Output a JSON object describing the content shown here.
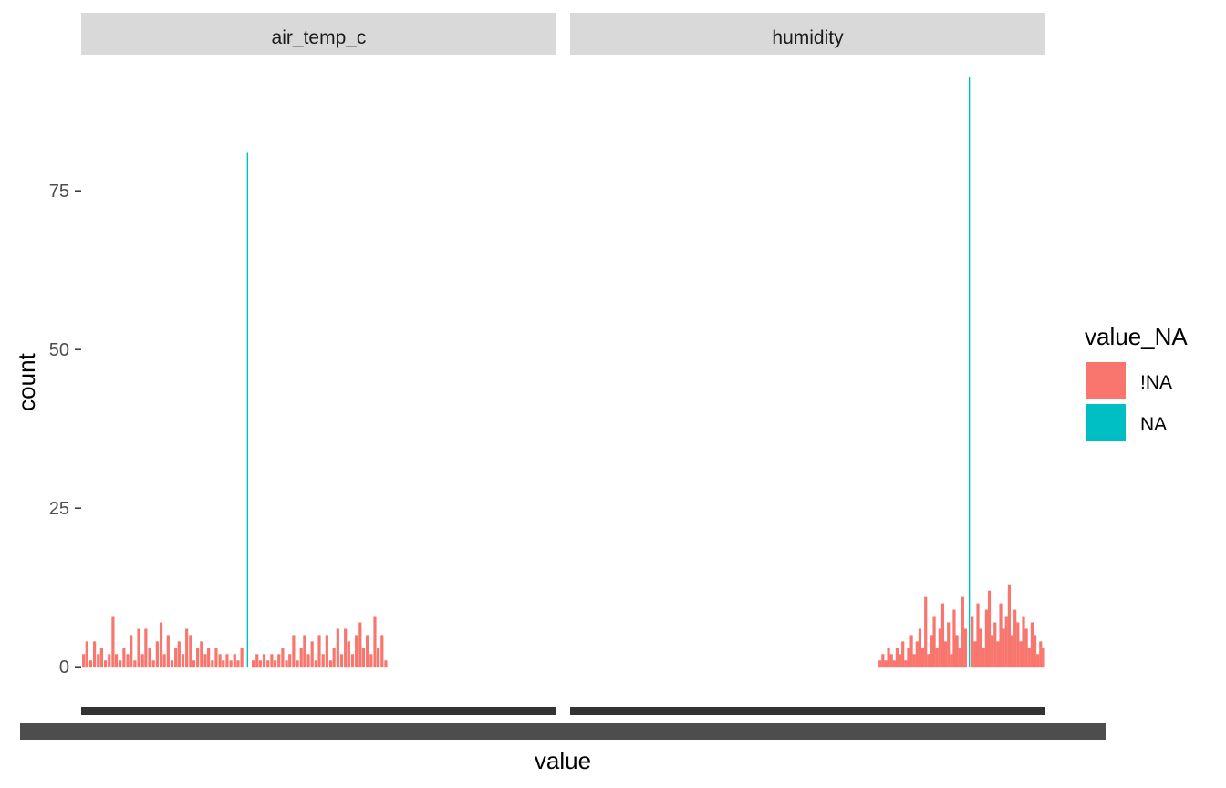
{
  "chart_data": {
    "type": "bar",
    "subtype": "faceted histogram",
    "title": "",
    "xlabel": "value",
    "ylabel": "count",
    "ylim": [
      -5,
      95
    ],
    "y_ticks": [
      0,
      25,
      50,
      75
    ],
    "grid": false,
    "legend": {
      "title": "value_NA",
      "placement": "right",
      "entries": [
        {
          "label": "!NA",
          "color": "#F8766D"
        },
        {
          "label": "NA",
          "color": "#00BFC4"
        }
      ]
    },
    "facets": [
      {
        "label": "air_temp_c",
        "x_range": [
          0,
          100
        ],
        "na": {
          "x": 35,
          "count": 81
        },
        "non_na": [
          {
            "x": 0.5,
            "count": 2
          },
          {
            "x": 1.2,
            "count": 4
          },
          {
            "x": 2.0,
            "count": 1
          },
          {
            "x": 2.8,
            "count": 4
          },
          {
            "x": 3.6,
            "count": 2
          },
          {
            "x": 4.3,
            "count": 3
          },
          {
            "x": 5.1,
            "count": 1
          },
          {
            "x": 5.9,
            "count": 2
          },
          {
            "x": 6.7,
            "count": 8
          },
          {
            "x": 7.4,
            "count": 2
          },
          {
            "x": 8.2,
            "count": 1
          },
          {
            "x": 9.0,
            "count": 3
          },
          {
            "x": 9.8,
            "count": 2
          },
          {
            "x": 10.5,
            "count": 5
          },
          {
            "x": 11.3,
            "count": 1
          },
          {
            "x": 12.1,
            "count": 6
          },
          {
            "x": 12.9,
            "count": 2
          },
          {
            "x": 13.6,
            "count": 6
          },
          {
            "x": 14.4,
            "count": 3
          },
          {
            "x": 15.2,
            "count": 1
          },
          {
            "x": 16.0,
            "count": 4
          },
          {
            "x": 16.8,
            "count": 7
          },
          {
            "x": 17.5,
            "count": 2
          },
          {
            "x": 18.3,
            "count": 5
          },
          {
            "x": 19.1,
            "count": 1
          },
          {
            "x": 19.9,
            "count": 3
          },
          {
            "x": 20.6,
            "count": 4
          },
          {
            "x": 21.4,
            "count": 2
          },
          {
            "x": 22.2,
            "count": 6
          },
          {
            "x": 23.0,
            "count": 5
          },
          {
            "x": 23.7,
            "count": 1
          },
          {
            "x": 24.5,
            "count": 3
          },
          {
            "x": 25.3,
            "count": 4
          },
          {
            "x": 26.1,
            "count": 2
          },
          {
            "x": 26.8,
            "count": 3
          },
          {
            "x": 27.6,
            "count": 1
          },
          {
            "x": 28.4,
            "count": 3
          },
          {
            "x": 29.2,
            "count": 2
          },
          {
            "x": 29.9,
            "count": 1
          },
          {
            "x": 30.7,
            "count": 2
          },
          {
            "x": 31.5,
            "count": 1
          },
          {
            "x": 32.3,
            "count": 2
          },
          {
            "x": 33.0,
            "count": 1
          },
          {
            "x": 33.8,
            "count": 3
          },
          {
            "x": 36.2,
            "count": 1
          },
          {
            "x": 37.0,
            "count": 2
          },
          {
            "x": 37.7,
            "count": 1
          },
          {
            "x": 38.5,
            "count": 2
          },
          {
            "x": 39.3,
            "count": 1
          },
          {
            "x": 40.1,
            "count": 2
          },
          {
            "x": 40.8,
            "count": 1
          },
          {
            "x": 41.6,
            "count": 2
          },
          {
            "x": 42.4,
            "count": 3
          },
          {
            "x": 43.2,
            "count": 1
          },
          {
            "x": 43.9,
            "count": 2
          },
          {
            "x": 44.7,
            "count": 5
          },
          {
            "x": 45.5,
            "count": 1
          },
          {
            "x": 46.3,
            "count": 3
          },
          {
            "x": 47.0,
            "count": 5
          },
          {
            "x": 47.8,
            "count": 2
          },
          {
            "x": 48.6,
            "count": 4
          },
          {
            "x": 49.4,
            "count": 1
          },
          {
            "x": 50.1,
            "count": 5
          },
          {
            "x": 50.9,
            "count": 2
          },
          {
            "x": 51.7,
            "count": 5
          },
          {
            "x": 52.5,
            "count": 1
          },
          {
            "x": 53.2,
            "count": 3
          },
          {
            "x": 54.0,
            "count": 6
          },
          {
            "x": 54.8,
            "count": 2
          },
          {
            "x": 55.6,
            "count": 6
          },
          {
            "x": 56.3,
            "count": 4
          },
          {
            "x": 57.1,
            "count": 2
          },
          {
            "x": 57.9,
            "count": 5
          },
          {
            "x": 58.7,
            "count": 7
          },
          {
            "x": 59.4,
            "count": 3
          },
          {
            "x": 60.2,
            "count": 5
          },
          {
            "x": 61.0,
            "count": 2
          },
          {
            "x": 61.8,
            "count": 8
          },
          {
            "x": 62.5,
            "count": 3
          },
          {
            "x": 63.3,
            "count": 5
          },
          {
            "x": 64.1,
            "count": 1
          }
        ]
      },
      {
        "label": "humidity",
        "x_range": [
          0,
          100
        ],
        "na": {
          "x": 84,
          "count": 93
        },
        "non_na": [
          {
            "x": 65.2,
            "count": 1
          },
          {
            "x": 65.8,
            "count": 2
          },
          {
            "x": 66.4,
            "count": 1
          },
          {
            "x": 67.0,
            "count": 3
          },
          {
            "x": 67.6,
            "count": 2
          },
          {
            "x": 68.2,
            "count": 1
          },
          {
            "x": 68.8,
            "count": 3
          },
          {
            "x": 69.4,
            "count": 2
          },
          {
            "x": 70.0,
            "count": 4
          },
          {
            "x": 70.6,
            "count": 1
          },
          {
            "x": 71.2,
            "count": 3
          },
          {
            "x": 71.8,
            "count": 5
          },
          {
            "x": 72.4,
            "count": 2
          },
          {
            "x": 73.0,
            "count": 4
          },
          {
            "x": 73.6,
            "count": 6
          },
          {
            "x": 74.2,
            "count": 3
          },
          {
            "x": 74.8,
            "count": 11
          },
          {
            "x": 75.4,
            "count": 2
          },
          {
            "x": 76.0,
            "count": 5
          },
          {
            "x": 76.6,
            "count": 8
          },
          {
            "x": 77.2,
            "count": 3
          },
          {
            "x": 77.8,
            "count": 6
          },
          {
            "x": 78.4,
            "count": 10
          },
          {
            "x": 79.0,
            "count": 4
          },
          {
            "x": 79.6,
            "count": 7
          },
          {
            "x": 80.2,
            "count": 2
          },
          {
            "x": 80.8,
            "count": 9
          },
          {
            "x": 81.4,
            "count": 5
          },
          {
            "x": 82.0,
            "count": 3
          },
          {
            "x": 82.6,
            "count": 11
          },
          {
            "x": 83.2,
            "count": 6
          },
          {
            "x": 84.6,
            "count": 8
          },
          {
            "x": 85.2,
            "count": 4
          },
          {
            "x": 85.8,
            "count": 10
          },
          {
            "x": 86.4,
            "count": 6
          },
          {
            "x": 87.0,
            "count": 3
          },
          {
            "x": 87.6,
            "count": 9
          },
          {
            "x": 88.2,
            "count": 12
          },
          {
            "x": 88.8,
            "count": 5
          },
          {
            "x": 89.4,
            "count": 7
          },
          {
            "x": 90.0,
            "count": 4
          },
          {
            "x": 90.6,
            "count": 10
          },
          {
            "x": 91.2,
            "count": 6
          },
          {
            "x": 91.8,
            "count": 8
          },
          {
            "x": 92.4,
            "count": 13
          },
          {
            "x": 93.0,
            "count": 5
          },
          {
            "x": 93.6,
            "count": 9
          },
          {
            "x": 94.2,
            "count": 7
          },
          {
            "x": 94.8,
            "count": 4
          },
          {
            "x": 95.4,
            "count": 8
          },
          {
            "x": 96.0,
            "count": 6
          },
          {
            "x": 96.6,
            "count": 3
          },
          {
            "x": 97.2,
            "count": 7
          },
          {
            "x": 97.8,
            "count": 5
          },
          {
            "x": 98.4,
            "count": 2
          },
          {
            "x": 99.0,
            "count": 4
          },
          {
            "x": 99.6,
            "count": 3
          }
        ]
      }
    ]
  }
}
